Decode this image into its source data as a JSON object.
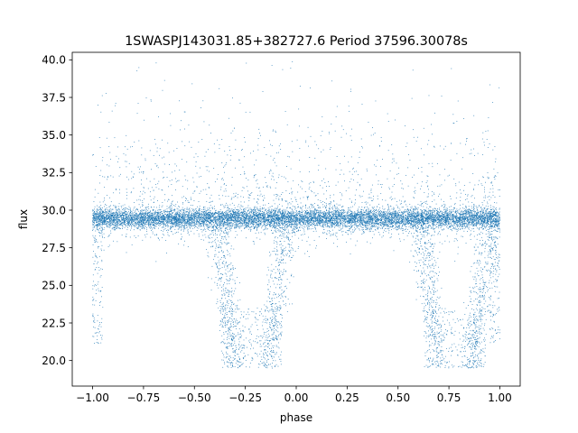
{
  "chart_data": {
    "type": "scatter",
    "title": "1SWASPJ143031.85+382727.6 Period 37596.30078s",
    "xlabel": "phase",
    "ylabel": "flux",
    "xlim": [
      -1.1,
      1.1
    ],
    "ylim": [
      18.3,
      40.5
    ],
    "xticks": [
      -1.0,
      -0.75,
      -0.5,
      -0.25,
      0.0,
      0.25,
      0.5,
      0.75,
      1.0
    ],
    "xtick_labels": [
      "−1.00",
      "−0.75",
      "−0.50",
      "−0.25",
      "0.00",
      "0.25",
      "0.50",
      "0.75",
      "1.00"
    ],
    "yticks": [
      20.0,
      22.5,
      25.0,
      27.5,
      30.0,
      32.5,
      35.0,
      37.5,
      40.0
    ],
    "ytick_labels": [
      "20.0",
      "22.5",
      "25.0",
      "27.5",
      "30.0",
      "32.5",
      "35.0",
      "37.5",
      "40.0"
    ],
    "grid": false,
    "marker_color": "#1f77b4",
    "series": [
      {
        "description_points": [
          {
            "phase": -1.0,
            "flux": 29.5
          },
          {
            "phase": -0.75,
            "flux": 29.5
          },
          {
            "phase": -0.5,
            "flux": 29.4
          },
          {
            "phase": -0.25,
            "flux": 29.2
          },
          {
            "phase": 0.0,
            "flux": 29.4
          },
          {
            "phase": 0.25,
            "flux": 29.5
          },
          {
            "phase": 0.5,
            "flux": 29.4
          },
          {
            "phase": 0.75,
            "flux": 29.2
          },
          {
            "phase": 1.0,
            "flux": 29.5
          },
          {
            "phase": -0.3,
            "flux": 20.5
          },
          {
            "phase": -0.2,
            "flux": 19.6
          },
          {
            "phase": -0.15,
            "flux": 21.5
          },
          {
            "phase": 0.7,
            "flux": 20.5
          },
          {
            "phase": 0.8,
            "flux": 19.6
          },
          {
            "phase": 0.85,
            "flux": 21.5
          }
        ]
      }
    ]
  }
}
